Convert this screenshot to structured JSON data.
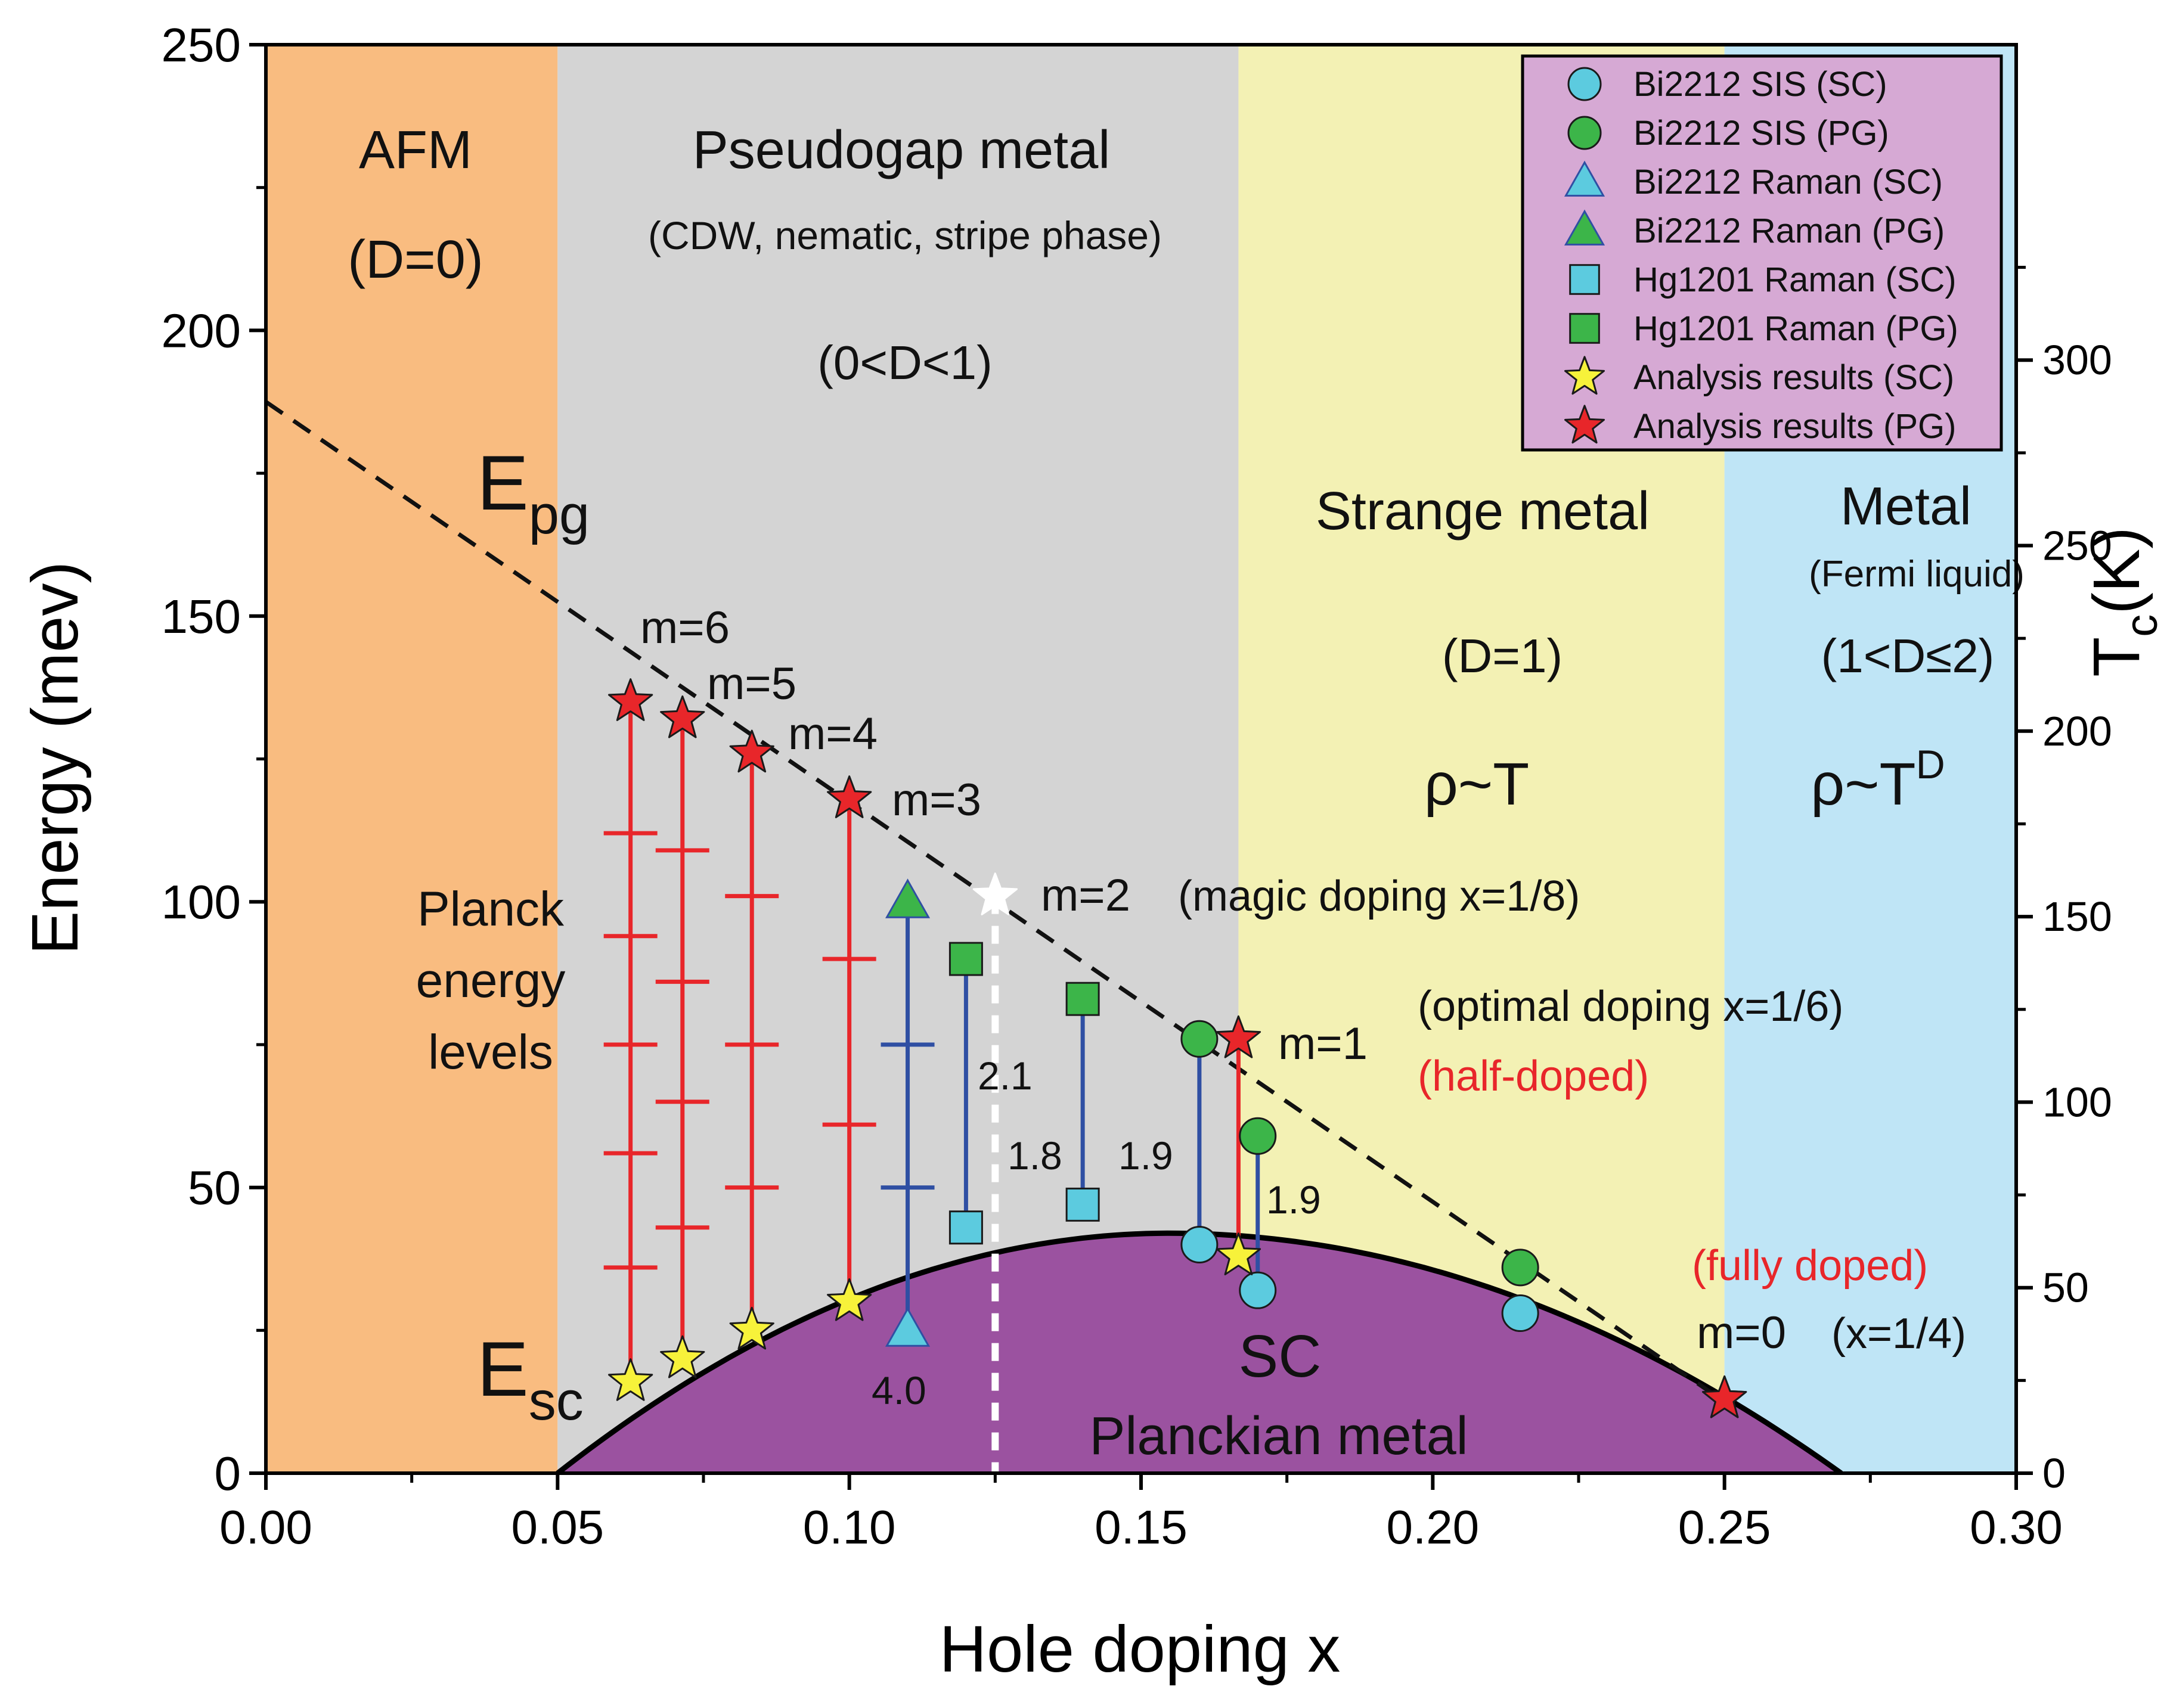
{
  "chart_data": {
    "type": "scatter",
    "xlabel": "Hole doping x",
    "ylabel": "Energy (mev)",
    "y2label_main": "T",
    "y2label_sub": "c",
    "y2label_unit": "(K)",
    "xlim": [
      0.0,
      0.3
    ],
    "ylim": [
      0,
      250
    ],
    "y2lim": [
      0,
      385
    ],
    "x_ticks": [
      0.0,
      0.05,
      0.1,
      0.15,
      0.2,
      0.25,
      0.3
    ],
    "x_tick_labels": [
      "0.00",
      "0.05",
      "0.10",
      "0.15",
      "0.20",
      "0.25",
      "0.30"
    ],
    "y_ticks": [
      0,
      50,
      100,
      150,
      200,
      250
    ],
    "y_tick_labels": [
      "0",
      "50",
      "100",
      "150",
      "200",
      "250"
    ],
    "y2_ticks": [
      0,
      50,
      100,
      150,
      200,
      250,
      300
    ],
    "y2_tick_labels": [
      "0",
      "50",
      "100",
      "150",
      "200",
      "250",
      "300"
    ],
    "colors": {
      "afm": "#f9bc80",
      "pseudogap": "#d4d4d4",
      "strange": "#f3f1b4",
      "metal": "#bfe5f6",
      "dome": "#9b52a0",
      "legend_bg": "#d6a9d4",
      "red": "#e8262a",
      "blue": "#2f4fa3",
      "cyan": "#5ccbdf",
      "green": "#3cb549",
      "yellow": "#f7f23a",
      "white_star": "#ffffff"
    },
    "regions": [
      {
        "name": "AFM",
        "x0": 0.0,
        "x1": 0.05,
        "color_key": "afm",
        "title": "AFM",
        "subtitle": "(D=0)"
      },
      {
        "name": "Pseudogap",
        "x0": 0.05,
        "x1": 0.1667,
        "color_key": "pseudogap",
        "title": "Pseudogap metal",
        "subtitle": "(CDW, nematic, stripe phase)",
        "note": "(0<D<1)"
      },
      {
        "name": "Strange",
        "x0": 0.1667,
        "x1": 0.25,
        "color_key": "strange",
        "title": "Strange metal",
        "note": "(D=1)",
        "rho": "ρ~T"
      },
      {
        "name": "Metal",
        "x0": 0.25,
        "x1": 0.3,
        "color_key": "metal",
        "title": "Metal",
        "subtitle": "(Fermi liquid)",
        "note": "(1<D≤2)",
        "rho_base": "ρ~T",
        "rho_sup": "D"
      }
    ],
    "dome": {
      "x_start": 0.05,
      "x_peak": 0.155,
      "x_end": 0.27,
      "y_peak": 42
    },
    "epg_line": {
      "x0": 0.0,
      "y0": 187.5,
      "x1": 0.25,
      "y1": 12.5
    },
    "planck_levels": [
      {
        "x": 0.0625,
        "top": 135,
        "bottom": 16,
        "ticks": [
          36,
          56,
          75,
          94,
          112
        ],
        "color_key": "red"
      },
      {
        "x": 0.0714,
        "top": 132,
        "bottom": 20,
        "ticks": [
          43,
          65,
          86,
          109
        ],
        "color_key": "red"
      },
      {
        "x": 0.0833,
        "top": 126,
        "bottom": 25,
        "ticks": [
          50,
          75,
          101
        ],
        "color_key": "red"
      },
      {
        "x": 0.1,
        "top": 118,
        "bottom": 30,
        "ticks": [
          61,
          90
        ],
        "color_key": "red"
      },
      {
        "x": 0.11,
        "top": 100,
        "bottom": 25,
        "ticks": [
          50,
          75
        ],
        "color_key": "blue"
      },
      {
        "x": 0.12,
        "top": 90,
        "bottom": 43,
        "ticks": [],
        "color_key": "blue"
      },
      {
        "x": 0.14,
        "top": 83,
        "bottom": 47,
        "ticks": [],
        "color_key": "blue"
      },
      {
        "x": 0.16,
        "top": 76,
        "bottom": 40,
        "ticks": [],
        "color_key": "blue"
      },
      {
        "x": 0.1667,
        "top": 76,
        "bottom": 38,
        "ticks": [],
        "color_key": "red"
      },
      {
        "x": 0.17,
        "top": 59,
        "bottom": 32,
        "ticks": [],
        "color_key": "blue"
      }
    ],
    "magic_line": {
      "x": 0.125,
      "y_top": 101,
      "y_bottom": 0
    },
    "series": [
      {
        "name": "Bi2212 SIS (SC)",
        "marker": "circle",
        "color_key": "cyan",
        "points": [
          [
            0.16,
            40
          ],
          [
            0.17,
            32
          ],
          [
            0.215,
            28
          ]
        ]
      },
      {
        "name": "Bi2212 SIS (PG)",
        "marker": "circle",
        "color_key": "green",
        "points": [
          [
            0.16,
            76
          ],
          [
            0.17,
            59
          ],
          [
            0.215,
            36
          ]
        ]
      },
      {
        "name": "Bi2212 Raman (SC)",
        "marker": "triangle",
        "color_key": "cyan",
        "points": [
          [
            0.11,
            25
          ]
        ]
      },
      {
        "name": "Bi2212 Raman (PG)",
        "marker": "triangle",
        "color_key": "green",
        "points": [
          [
            0.11,
            100
          ]
        ]
      },
      {
        "name": "Hg1201 Raman (SC)",
        "marker": "square",
        "color_key": "cyan",
        "points": [
          [
            0.12,
            43
          ],
          [
            0.14,
            47
          ]
        ]
      },
      {
        "name": "Hg1201 Raman (PG)",
        "marker": "square",
        "color_key": "green",
        "points": [
          [
            0.12,
            90
          ],
          [
            0.14,
            83
          ]
        ]
      },
      {
        "name": "Analysis results (SC)",
        "marker": "star",
        "color_key": "yellow",
        "points": [
          [
            0.0625,
            16
          ],
          [
            0.0714,
            20
          ],
          [
            0.0833,
            25
          ],
          [
            0.1,
            30
          ],
          [
            0.1667,
            38
          ],
          [
            0.25,
            13
          ]
        ]
      },
      {
        "name": "Analysis results (PG)",
        "marker": "star",
        "color_key": "red",
        "points": [
          [
            0.0625,
            135
          ],
          [
            0.0714,
            132
          ],
          [
            0.0833,
            126
          ],
          [
            0.1,
            118
          ],
          [
            0.1667,
            76
          ],
          [
            0.25,
            13
          ]
        ]
      }
    ],
    "extra_markers": [
      {
        "name": "magic-doping-star",
        "marker": "star",
        "color_key": "white_star",
        "x": 0.125,
        "y": 101
      }
    ],
    "labels": {
      "epg_main": "E",
      "epg_sub": "pg",
      "esc_main": "E",
      "esc_sub": "sc",
      "planck1": "Planck",
      "planck2": "energy",
      "planck3": "levels",
      "m6": "m=6",
      "m5": "m=5",
      "m4": "m=4",
      "m3": "m=3",
      "m2": "m=2",
      "magic": "(magic doping x=1/8)",
      "m1": "m=1",
      "optimal": "(optimal doping x=1/6)",
      "half": "(half-doped)",
      "fully": "(fully doped)",
      "m0": "m=0",
      "m0note": "(x=1/4)",
      "sc": "SC",
      "planckian": "Planckian metal",
      "ratio_40": "4.0",
      "ratio_21": "2.1",
      "ratio_18": "1.8",
      "ratio_19a": "1.9",
      "ratio_19b": "1.9"
    }
  }
}
